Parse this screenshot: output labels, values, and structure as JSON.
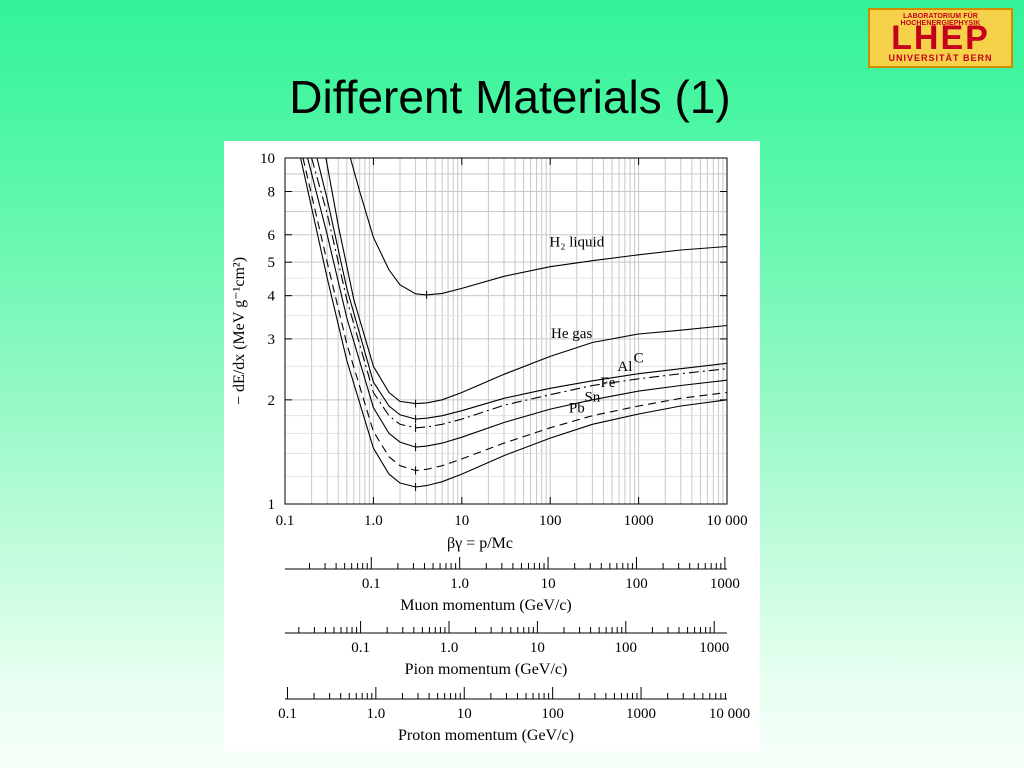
{
  "slide": {
    "title": "Different Materials (1)"
  },
  "logo": {
    "top_text": "LABORATORIUM FÜR HOCHENERGIEPHYSIK",
    "main_text": "LHEP",
    "bottom_text": "UNIVERSITÄT BERN",
    "colors": {
      "background": "#f6d24a",
      "text": "#c4001e",
      "border": "#d28a00"
    }
  },
  "chart_data": [
    {
      "type": "line",
      "title": "",
      "xlabel": "βγ = p/Mc",
      "ylabel": "− dE/dx (MeV g⁻¹cm²)",
      "x_scale": "log",
      "y_scale": "log",
      "xlim": [
        0.1,
        10000
      ],
      "ylim": [
        1,
        10
      ],
      "x_tick_labels": [
        "0.1",
        "1.0",
        "10",
        "100",
        "1000",
        "10 000"
      ],
      "y_tick_labels": [
        "1",
        "2",
        "3",
        "4",
        "5",
        "6",
        "8",
        "10"
      ],
      "grid": true,
      "series": [
        {
          "name": "H2 liquid",
          "style": "solid",
          "x": [
            0.55,
            0.7,
            1.0,
            1.5,
            2.0,
            3.0,
            4.0,
            6.0,
            10,
            30,
            100,
            300,
            1000,
            3000,
            10000
          ],
          "y": [
            10,
            8.0,
            5.9,
            4.75,
            4.3,
            4.05,
            4.02,
            4.06,
            4.2,
            4.55,
            4.85,
            5.05,
            5.25,
            5.42,
            5.55
          ]
        },
        {
          "name": "He gas",
          "style": "solid",
          "x": [
            0.29,
            0.4,
            0.6,
            1.0,
            1.5,
            2.0,
            3.0,
            4.0,
            6.0,
            10,
            30,
            100,
            300,
            1000,
            3000,
            10000
          ],
          "y": [
            10,
            6.4,
            3.9,
            2.5,
            2.1,
            1.98,
            1.95,
            1.96,
            2.0,
            2.1,
            2.37,
            2.67,
            2.93,
            3.1,
            3.18,
            3.28
          ]
        },
        {
          "name": "C",
          "style": "solid",
          "x": [
            0.23,
            0.3,
            0.5,
            1.0,
            1.5,
            2.0,
            3.0,
            4.0,
            6.0,
            10,
            30,
            100,
            300,
            1000,
            3000,
            10000
          ],
          "y": [
            10,
            7.6,
            4.2,
            2.25,
            1.92,
            1.81,
            1.76,
            1.77,
            1.8,
            1.86,
            2.02,
            2.16,
            2.27,
            2.38,
            2.46,
            2.55
          ]
        },
        {
          "name": "Al",
          "style": "dashdot",
          "x": [
            0.2,
            0.3,
            0.5,
            1.0,
            1.5,
            2.0,
            3.0,
            4.0,
            6.0,
            10,
            30,
            100,
            300,
            1000,
            3000,
            10000
          ],
          "y": [
            10,
            6.9,
            3.9,
            2.1,
            1.8,
            1.7,
            1.66,
            1.67,
            1.7,
            1.76,
            1.93,
            2.07,
            2.2,
            2.3,
            2.38,
            2.46
          ]
        },
        {
          "name": "Fe",
          "style": "solid",
          "x": [
            0.18,
            0.3,
            0.5,
            1.0,
            1.5,
            2.0,
            3.0,
            4.0,
            6.0,
            10,
            30,
            100,
            300,
            1000,
            3000,
            10000
          ],
          "y": [
            10,
            6.0,
            3.45,
            1.9,
            1.6,
            1.51,
            1.46,
            1.47,
            1.5,
            1.56,
            1.72,
            1.88,
            2.0,
            2.12,
            2.2,
            2.28
          ]
        },
        {
          "name": "Sn",
          "style": "dashed",
          "x": [
            0.16,
            0.3,
            0.5,
            1.0,
            1.5,
            2.0,
            3.0,
            4.0,
            6.0,
            10,
            30,
            100,
            300,
            1000,
            3000,
            10000
          ],
          "y": [
            10,
            5.0,
            2.9,
            1.62,
            1.37,
            1.29,
            1.25,
            1.26,
            1.29,
            1.35,
            1.5,
            1.66,
            1.8,
            1.92,
            2.02,
            2.1
          ]
        },
        {
          "name": "Pb",
          "style": "solid",
          "x": [
            0.15,
            0.3,
            0.5,
            1.0,
            1.5,
            2.0,
            3.0,
            4.0,
            6.0,
            10,
            30,
            100,
            300,
            1000,
            3000,
            10000
          ],
          "y": [
            10,
            4.5,
            2.6,
            1.45,
            1.22,
            1.15,
            1.12,
            1.13,
            1.16,
            1.22,
            1.38,
            1.55,
            1.7,
            1.82,
            1.92,
            2.0
          ]
        }
      ],
      "series_labels": [
        "H₂ liquid",
        "He gas",
        "C",
        "Al",
        "Fe",
        "Sn",
        "Pb"
      ]
    },
    {
      "type": "axis",
      "xlabel": "Muon momentum (GeV/c)",
      "scale": "log",
      "tick_labels": [
        "0.1",
        "1.0",
        "10",
        "100",
        "1000"
      ],
      "label_values": [
        0.1,
        1,
        10,
        100,
        1000
      ],
      "xlim": [
        0.01057,
        1057
      ]
    },
    {
      "type": "axis",
      "xlabel": "Pion momentum (GeV/c)",
      "scale": "log",
      "tick_labels": [
        "0.1",
        "1.0",
        "10",
        "100",
        "1000"
      ],
      "label_values": [
        0.1,
        1,
        10,
        100,
        1000
      ],
      "xlim": [
        0.01396,
        1396
      ]
    },
    {
      "type": "axis",
      "xlabel": "Proton momentum (GeV/c)",
      "scale": "log",
      "tick_labels": [
        "0.1",
        "1.0",
        "10",
        "100",
        "1000",
        "10 000"
      ],
      "label_values": [
        0.1,
        1,
        10,
        100,
        1000,
        10000
      ],
      "xlim": [
        0.0938,
        9383
      ]
    }
  ]
}
